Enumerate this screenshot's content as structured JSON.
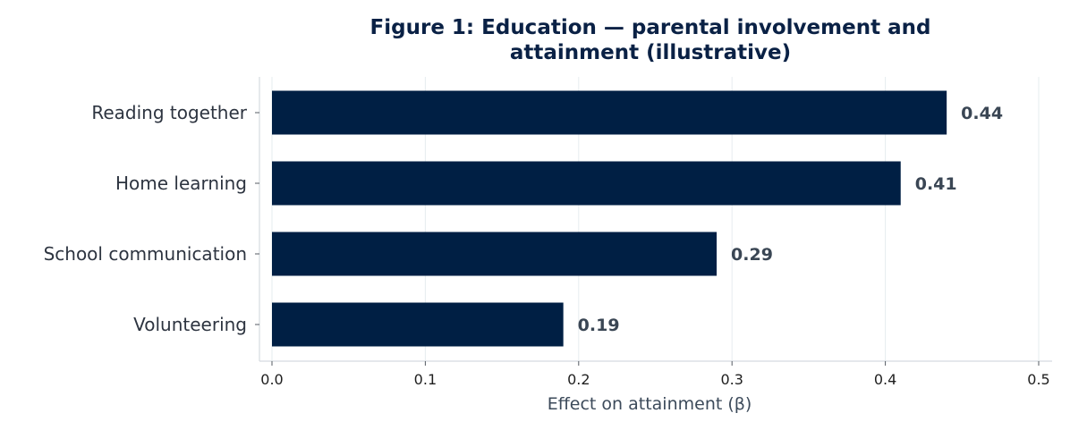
{
  "chart_data": {
    "type": "bar",
    "orientation": "horizontal",
    "title_lines": [
      "Figure 1: Education — parental involvement and",
      "attainment (illustrative)"
    ],
    "categories": [
      "Reading together",
      "Home learning",
      "School communication",
      "Volunteering"
    ],
    "values": [
      0.44,
      0.41,
      0.29,
      0.19
    ],
    "value_labels": [
      "0.44",
      "0.41",
      "0.29",
      "0.19"
    ],
    "xlabel": "Effect on attainment (β)",
    "ylabel": "",
    "xlim": [
      0,
      0.5
    ],
    "xticks": [
      0,
      0.1,
      0.2,
      0.3,
      0.4,
      0.5
    ],
    "xtick_labels": [
      "0.0",
      "0.1",
      "0.2",
      "0.3",
      "0.4",
      "0.5"
    ],
    "grid": "vertical",
    "legend": "none",
    "colors": {
      "bar": "#001f44",
      "title": "#0a2145"
    }
  }
}
